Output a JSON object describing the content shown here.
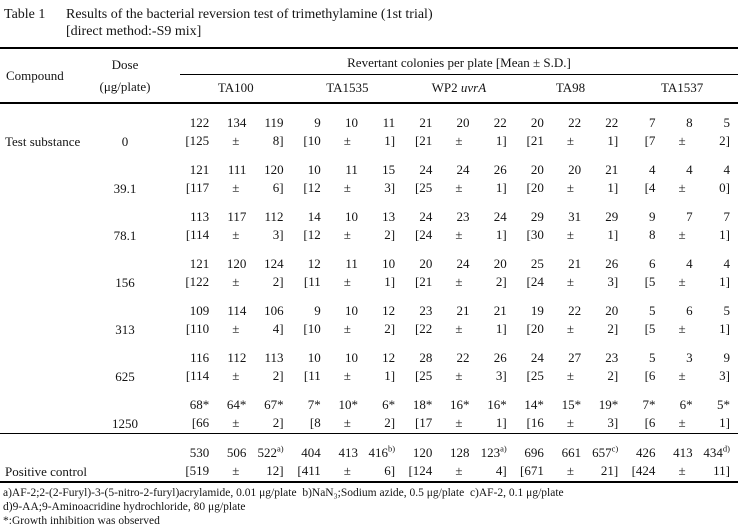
{
  "title": {
    "label": "Table 1",
    "line1": "Results of the bacterial reversion test of trimethylamine (1st trial)",
    "line2": "[direct method:-S9 mix]"
  },
  "header": {
    "compound": "Compound",
    "dose_line1": "Dose",
    "dose_line2": "(μg/plate)",
    "span_header": "Revertant colonies per plate [Mean ± S.D.]",
    "strains": [
      {
        "name": "TA100"
      },
      {
        "name": "TA1535"
      },
      {
        "name": "WP2 ",
        "italic": "uvrA"
      },
      {
        "name": "TA98"
      },
      {
        "name": "TA1537"
      }
    ]
  },
  "symbols": {
    "pm": "±"
  },
  "rows": [
    {
      "compound": "Test substance",
      "dose": "0",
      "cells": [
        {
          "values": [
            "122",
            "134",
            "119"
          ],
          "mean": "[125",
          "sd": "8]"
        },
        {
          "values": [
            "9",
            "10",
            "11"
          ],
          "mean": "[10",
          "sd": "1]"
        },
        {
          "values": [
            "21",
            "20",
            "22"
          ],
          "mean": "[21",
          "sd": "1]"
        },
        {
          "values": [
            "20",
            "22",
            "22"
          ],
          "mean": "[21",
          "sd": "1]"
        },
        {
          "values": [
            "7",
            "8",
            "5"
          ],
          "mean": "[7",
          "sd": "2]"
        }
      ]
    },
    {
      "compound": "",
      "dose": "39.1",
      "cells": [
        {
          "values": [
            "121",
            "111",
            "120"
          ],
          "mean": "[117",
          "sd": "6]"
        },
        {
          "values": [
            "10",
            "11",
            "15"
          ],
          "mean": "[12",
          "sd": "3]"
        },
        {
          "values": [
            "24",
            "24",
            "26"
          ],
          "mean": "[25",
          "sd": "1]"
        },
        {
          "values": [
            "20",
            "20",
            "21"
          ],
          "mean": "[20",
          "sd": "1]"
        },
        {
          "values": [
            "4",
            "4",
            "4"
          ],
          "mean": "[4",
          "sd": "0]"
        }
      ]
    },
    {
      "compound": "",
      "dose": "78.1",
      "cells": [
        {
          "values": [
            "113",
            "117",
            "112"
          ],
          "mean": "[114",
          "sd": "3]"
        },
        {
          "values": [
            "14",
            "10",
            "13"
          ],
          "mean": "[12",
          "sd": "2]"
        },
        {
          "values": [
            "24",
            "23",
            "24"
          ],
          "mean": "[24",
          "sd": "1]"
        },
        {
          "values": [
            "29",
            "31",
            "29"
          ],
          "mean": "[30",
          "sd": "1]"
        },
        {
          "values": [
            "9",
            "7",
            "7"
          ],
          "mean": "8",
          "sd": "1]"
        }
      ]
    },
    {
      "compound": "",
      "dose": "156",
      "cells": [
        {
          "values": [
            "121",
            "120",
            "124"
          ],
          "mean": "[122",
          "sd": "2]"
        },
        {
          "values": [
            "12",
            "11",
            "10"
          ],
          "mean": "[11",
          "sd": "1]"
        },
        {
          "values": [
            "20",
            "24",
            "20"
          ],
          "mean": "[21",
          "sd": "2]"
        },
        {
          "values": [
            "25",
            "21",
            "26"
          ],
          "mean": "[24",
          "sd": "3]"
        },
        {
          "values": [
            "6",
            "4",
            "4"
          ],
          "mean": "[5",
          "sd": "1]"
        }
      ]
    },
    {
      "compound": "",
      "dose": "313",
      "cells": [
        {
          "values": [
            "109",
            "114",
            "106"
          ],
          "mean": "[110",
          "sd": "4]"
        },
        {
          "values": [
            "9",
            "10",
            "12"
          ],
          "mean": "[10",
          "sd": "2]"
        },
        {
          "values": [
            "23",
            "21",
            "21"
          ],
          "mean": "[22",
          "sd": "1]"
        },
        {
          "values": [
            "19",
            "22",
            "20"
          ],
          "mean": "[20",
          "sd": "2]"
        },
        {
          "values": [
            "5",
            "6",
            "5"
          ],
          "mean": "[5",
          "sd": "1]"
        }
      ]
    },
    {
      "compound": "",
      "dose": "625",
      "cells": [
        {
          "values": [
            "116",
            "112",
            "113"
          ],
          "mean": "[114",
          "sd": "2]"
        },
        {
          "values": [
            "10",
            "10",
            "12"
          ],
          "mean": "[11",
          "sd": "1]"
        },
        {
          "values": [
            "28",
            "22",
            "26"
          ],
          "mean": "[25",
          "sd": "3]"
        },
        {
          "values": [
            "24",
            "27",
            "23"
          ],
          "mean": "[25",
          "sd": "2]"
        },
        {
          "values": [
            "5",
            "3",
            "9"
          ],
          "mean": "[6",
          "sd": "3]"
        }
      ]
    },
    {
      "compound": "",
      "dose": "1250",
      "cells": [
        {
          "values": [
            "68*",
            "64*",
            "67*"
          ],
          "mean": "[66",
          "sd": "2]"
        },
        {
          "values": [
            "7*",
            "10*",
            "6*"
          ],
          "mean": "[8",
          "sd": "2]"
        },
        {
          "values": [
            "18*",
            "16*",
            "16*"
          ],
          "mean": "[17",
          "sd": "1]"
        },
        {
          "values": [
            "14*",
            "15*",
            "19*"
          ],
          "mean": "[16",
          "sd": "3]"
        },
        {
          "values": [
            "7*",
            "6*",
            "5*"
          ],
          "mean": "[6",
          "sd": "1]"
        }
      ]
    },
    {
      "compound": "Positive control",
      "dose": "",
      "separator": true,
      "cells": [
        {
          "values": [
            "530",
            "506",
            {
              "v": "522",
              "sup": "a)"
            }
          ],
          "mean": "[519",
          "sd": "12]"
        },
        {
          "values": [
            "404",
            "413",
            {
              "v": "416",
              "sup": "b)"
            }
          ],
          "mean": "[411",
          "sd": "6]"
        },
        {
          "values": [
            "120",
            "128",
            {
              "v": "123",
              "sup": "a)"
            }
          ],
          "mean": "[124",
          "sd": "4]"
        },
        {
          "values": [
            "696",
            "661",
            {
              "v": "657",
              "sup": "c)"
            }
          ],
          "mean": "[671",
          "sd": "21]"
        },
        {
          "values": [
            "426",
            "413",
            {
              "v": "434",
              "sup": "d)"
            }
          ],
          "mean": "[424",
          "sd": "11]"
        }
      ]
    }
  ],
  "footnotes": [
    "a)AF-2;2-(2-Furyl)-3-(5-nitro-2-furyl)acrylamide, 0.01 μg/plate  b)NaN₃;Sodium azide, 0.5 μg/plate  c)AF-2, 0.1 μg/plate",
    "d)9-AA;9-Aminoacridine hydrochloride, 80 μg/plate",
    "*:Growth inhibition was observed"
  ]
}
